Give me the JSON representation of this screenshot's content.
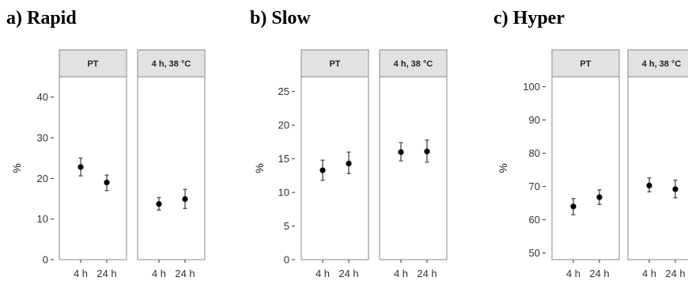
{
  "chart_data": [
    {
      "type": "scatter",
      "title": "a) Rapid",
      "ylabel": "%",
      "ylim": [
        0,
        45
      ],
      "yticks": [
        0,
        10,
        20,
        30,
        40
      ],
      "categories": [
        "4 h",
        "24 h"
      ],
      "facets": [
        {
          "name": "PT",
          "values": [
            22.8,
            19.0
          ],
          "lower": [
            20.6,
            17.0
          ],
          "upper": [
            25.0,
            20.8
          ]
        },
        {
          "name": "4 h, 38 °C",
          "values": [
            13.7,
            14.9
          ],
          "lower": [
            12.2,
            12.6
          ],
          "upper": [
            15.3,
            17.3
          ]
        }
      ]
    },
    {
      "type": "scatter",
      "title": "b) Slow",
      "ylabel": "%",
      "ylim": [
        0,
        27.2
      ],
      "yticks": [
        0,
        5,
        10,
        15,
        20,
        25
      ],
      "categories": [
        "4 h",
        "24 h"
      ],
      "facets": [
        {
          "name": "PT",
          "values": [
            13.3,
            14.3
          ],
          "lower": [
            11.8,
            12.8
          ],
          "upper": [
            14.8,
            16.0
          ]
        },
        {
          "name": "4 h, 38 °C",
          "values": [
            16.0,
            16.1
          ],
          "lower": [
            14.7,
            14.5
          ],
          "upper": [
            17.4,
            17.8
          ]
        }
      ]
    },
    {
      "type": "scatter",
      "title": "c) Hyper",
      "ylabel": "%",
      "ylim": [
        48,
        103
      ],
      "yticks": [
        50,
        60,
        70,
        80,
        90,
        100
      ],
      "categories": [
        "4 h",
        "24 h"
      ],
      "facets": [
        {
          "name": "PT",
          "values": [
            64.0,
            66.8
          ],
          "lower": [
            61.5,
            64.6
          ],
          "upper": [
            66.4,
            69.0
          ]
        },
        {
          "name": "4 h, 38 °C",
          "values": [
            70.3,
            69.2
          ],
          "lower": [
            68.4,
            66.6
          ],
          "upper": [
            72.6,
            71.9
          ]
        }
      ]
    }
  ]
}
